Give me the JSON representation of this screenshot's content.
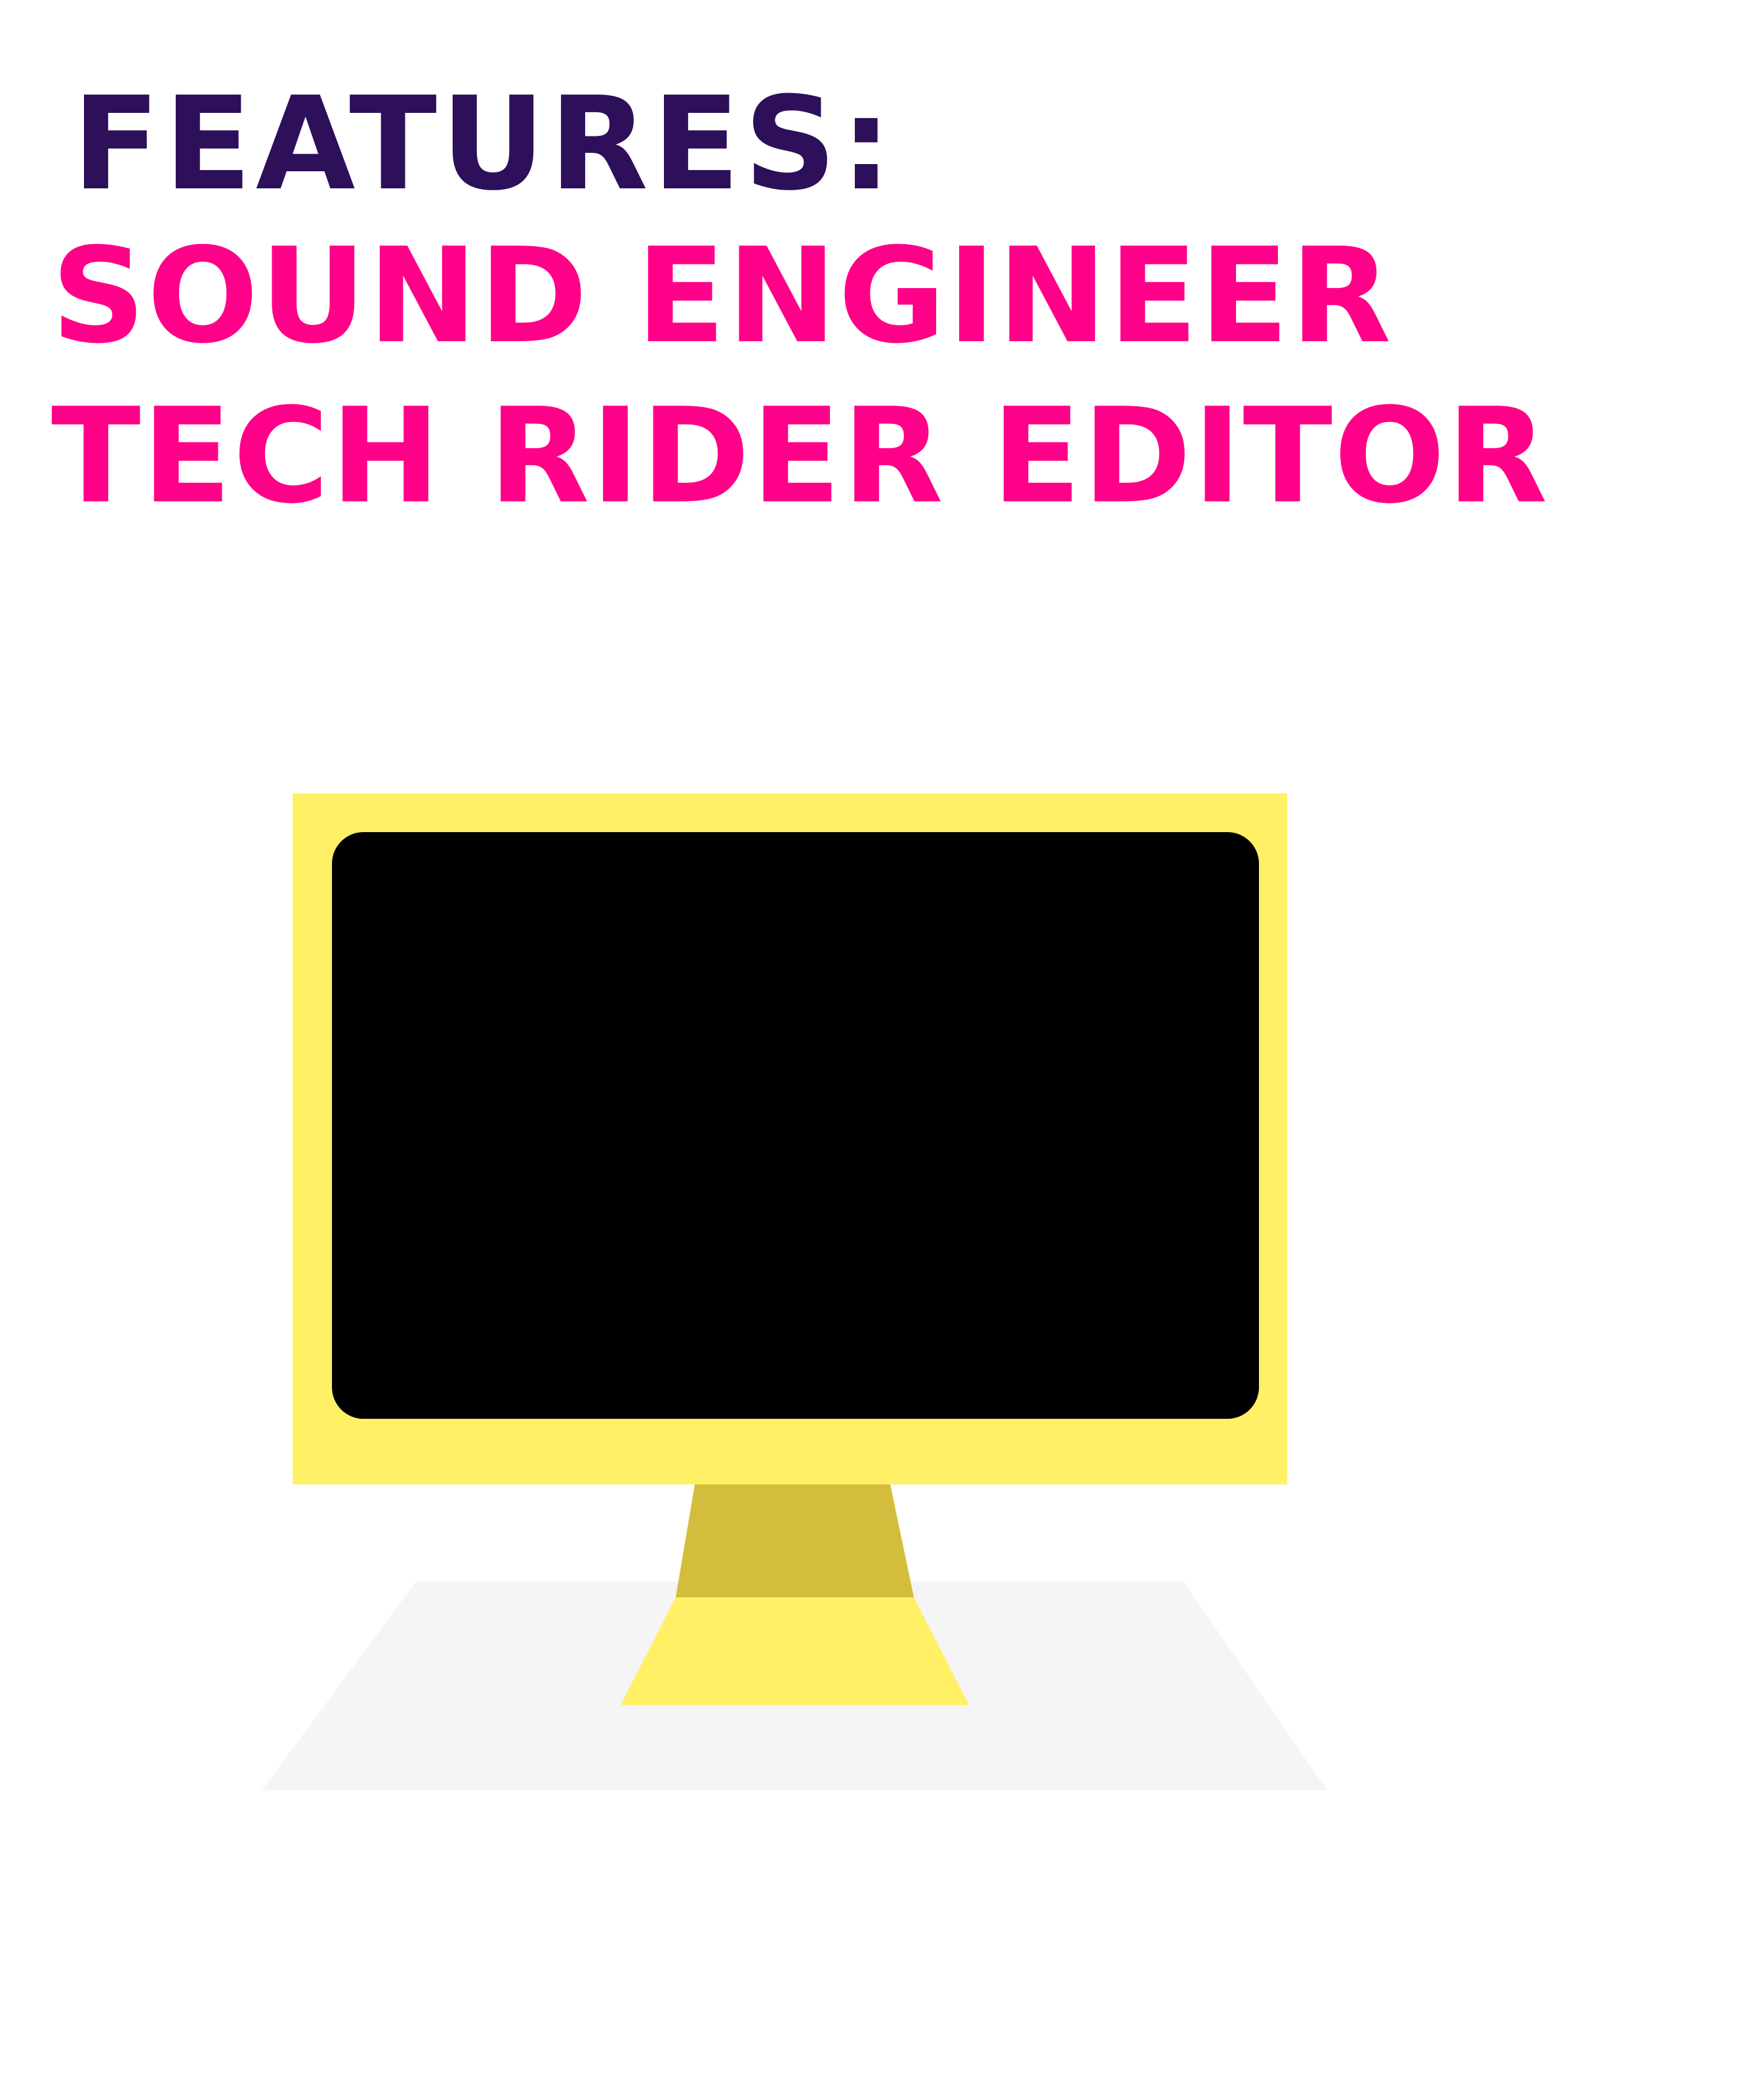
{
  "heading": {
    "features_label": "FEATURES:",
    "subtitle_line1": "SOUND ENGINEER",
    "subtitle_line2": "TECH RIDER EDITOR"
  },
  "colors": {
    "features": "#2d0f5a",
    "subtitle": "#ff0088",
    "monitor_frame": "#fff066",
    "monitor_screen": "#000000",
    "stand_neck": "#d4bd3c",
    "stand_base": "#fff066",
    "desk": "#f5f5f5",
    "background": "#ffffff"
  },
  "icons": {
    "monitor": "monitor-icon"
  }
}
